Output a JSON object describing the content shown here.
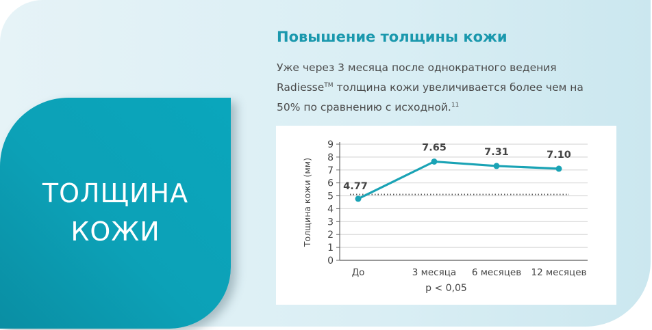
{
  "side_panel": {
    "title_line1": "ТОЛЩИНА",
    "title_line2": "КОЖИ"
  },
  "heading": "Повышение толщины кожи",
  "description": {
    "part1": "Уже через 3 месяца после однократного ведения Radiesse",
    "trademark": "TM",
    "part2": " толщина кожи увеличивается более чем на 50% по сравнению с исходной.",
    "footnote": "11"
  },
  "colors": {
    "accent": "#1aa3b5",
    "heading": "#1a98ad",
    "panel": "#0ca1b7",
    "grid": "#d9d9d9",
    "text": "#4a4a4a"
  },
  "chart_data": {
    "type": "line",
    "title": "",
    "xlabel": "",
    "ylabel": "Толщина кожи (мм)",
    "categories": [
      "До",
      "3 месяца",
      "6 месяцев",
      "12 месяцев"
    ],
    "series": [
      {
        "name": "Толщина кожи",
        "values": [
          4.77,
          7.65,
          7.31,
          7.1
        ]
      }
    ],
    "data_labels": [
      "4.77",
      "7.65",
      "7.31",
      "7.10"
    ],
    "reference_line": {
      "style": "dotted",
      "value": 5.1,
      "label": ""
    },
    "ylim": [
      0,
      9
    ],
    "yticks": [
      0,
      1,
      2,
      3,
      4,
      5,
      6,
      7,
      8,
      9
    ],
    "grid": true,
    "legend": "none",
    "annotation": "p < 0,05"
  }
}
